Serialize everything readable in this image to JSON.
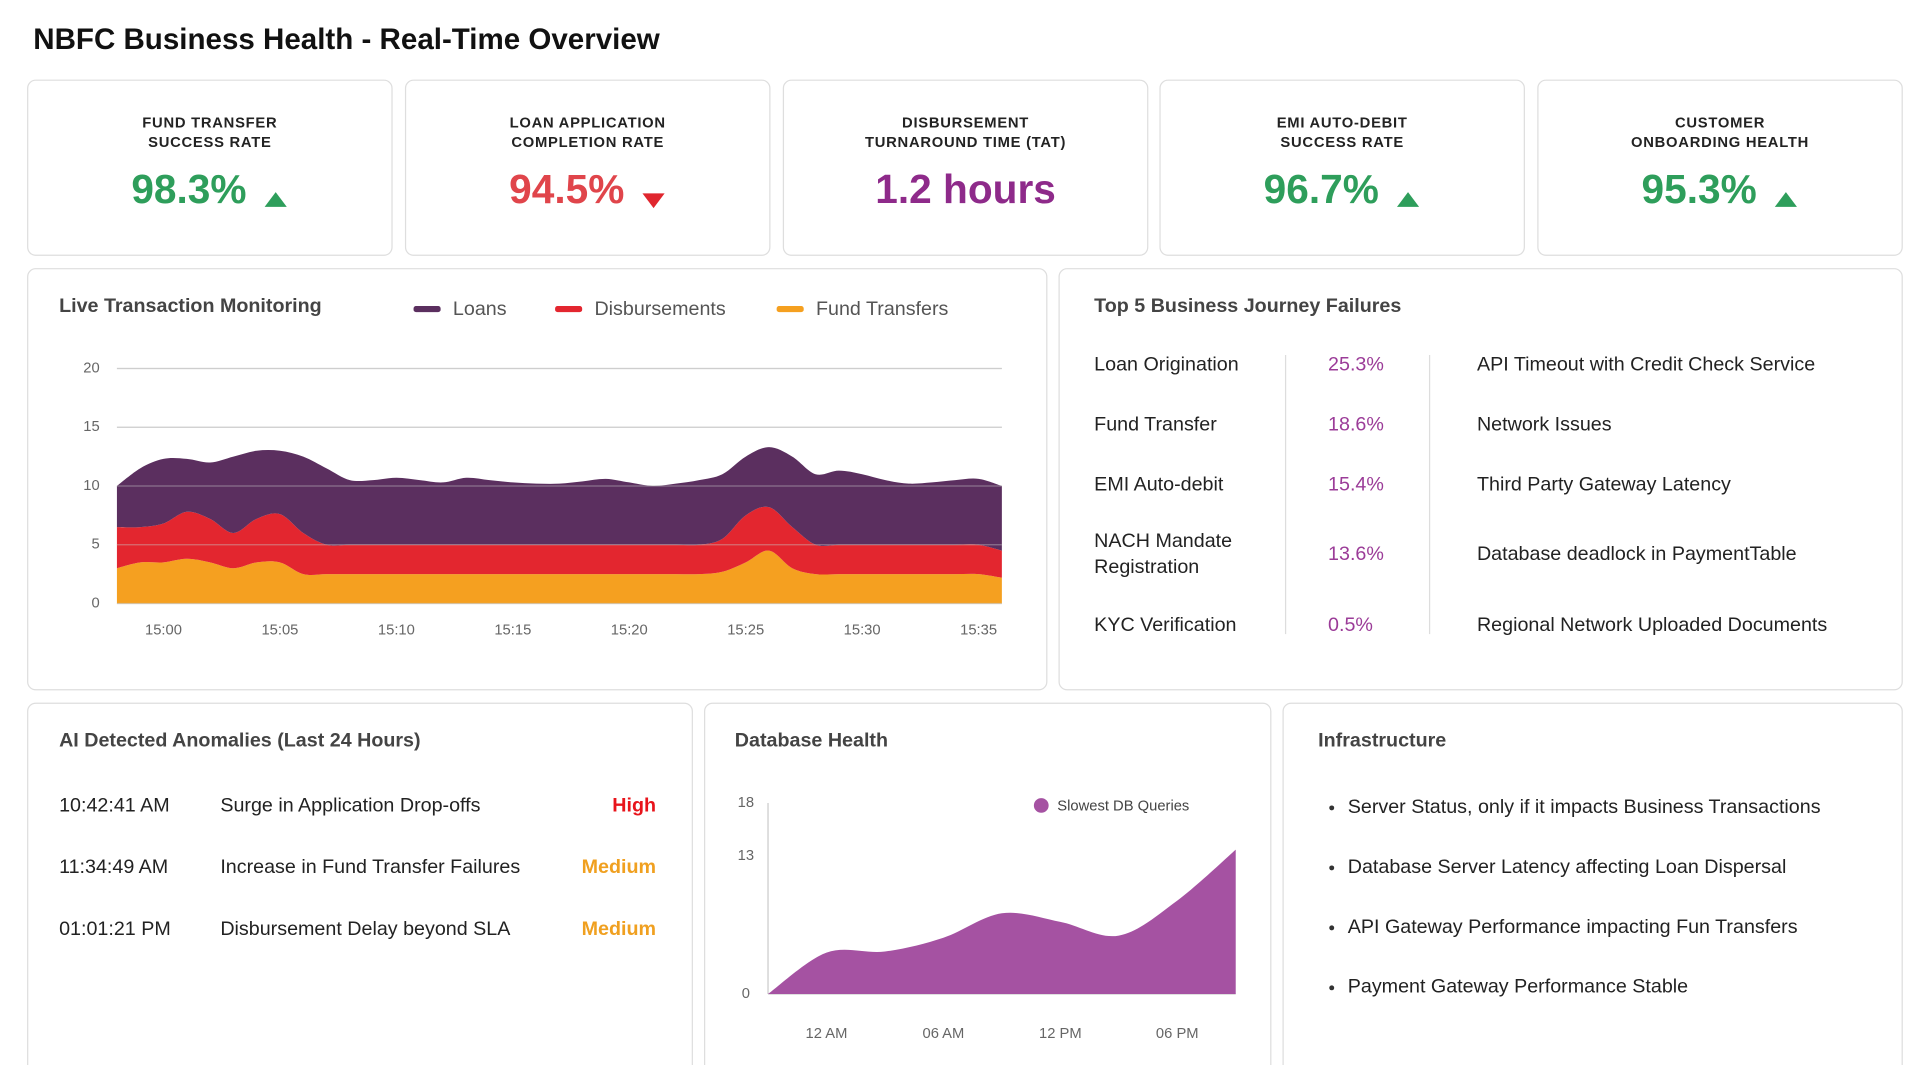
{
  "header": {
    "title": "NBFC Business Health - Real-Time Overview"
  },
  "kpis": [
    {
      "label_lines": [
        "FUND TRANSFER",
        "SUCCESS RATE"
      ],
      "value": "98.3%",
      "trend": "up",
      "color": "#2e9e5b"
    },
    {
      "label_lines": [
        "LOAN APPLICATION",
        "COMPLETION RATE"
      ],
      "value": "94.5%",
      "trend": "down",
      "color": "#e0454b"
    },
    {
      "label_lines": [
        "DISBURSEMENT",
        "TURNAROUND TIME (TAT)"
      ],
      "value": "1.2 hours",
      "color": "#8e2a8a"
    },
    {
      "label_lines": [
        "EMI AUTO-DEBIT",
        "SUCCESS RATE"
      ],
      "value": "96.7%",
      "trend": "up",
      "color": "#2e9e5b"
    },
    {
      "label_lines": [
        "CUSTOMER",
        "ONBOARDING HEALTH"
      ],
      "value": "95.3%",
      "trend": "up",
      "color": "#2e9e5b"
    }
  ],
  "chart_data": [
    {
      "type": "area",
      "stacked": true,
      "title": "Live Transaction Monitoring",
      "categories": [
        null,
        null,
        "15:00",
        null,
        null,
        null,
        null,
        "15:05",
        null,
        null,
        null,
        null,
        "15:10",
        null,
        null,
        null,
        null,
        "15:15",
        null,
        null,
        null,
        null,
        "15:20",
        null,
        null,
        null,
        null,
        "15:25",
        null,
        null,
        null,
        null,
        "15:30",
        null,
        null,
        null,
        null,
        "15:35",
        null
      ],
      "series": [
        {
          "name": "Loans",
          "color": "#5b2f5f",
          "values": [
            3.5,
            5,
            5.5,
            4.5,
            4.8,
            6.5,
            5.8,
            5.4,
            6.5,
            6.5,
            5.5,
            5.5,
            5.7,
            5.5,
            5.3,
            5.7,
            5.5,
            5.3,
            5.2,
            5.2,
            5.4,
            5.6,
            5.3,
            5,
            5.2,
            5.5,
            5.5,
            5,
            5.1,
            6,
            6,
            6.3,
            6,
            5.5,
            5.2,
            5.3,
            5.5,
            5.6,
            5.5
          ]
        },
        {
          "name": "Disbursements",
          "color": "#e3262f",
          "values": [
            3.5,
            3,
            3.3,
            4,
            3.7,
            3,
            3.7,
            4.1,
            3.5,
            2.5,
            2.5,
            2.5,
            2.5,
            2.5,
            2.5,
            2.5,
            2.5,
            2.5,
            2.5,
            2.5,
            2.5,
            2.5,
            2.5,
            2.5,
            2.5,
            2.5,
            2.8,
            4,
            3.7,
            3.5,
            2.5,
            2.5,
            2.5,
            2.5,
            2.5,
            2.5,
            2.5,
            2.5,
            2.3
          ]
        },
        {
          "name": "Fund Transfers",
          "color": "#f5a020",
          "values": [
            3,
            3.5,
            3.5,
            3.8,
            3.5,
            3,
            3.5,
            3.5,
            2.5,
            2.5,
            2.5,
            2.5,
            2.5,
            2.5,
            2.5,
            2.5,
            2.5,
            2.5,
            2.5,
            2.5,
            2.5,
            2.5,
            2.5,
            2.5,
            2.5,
            2.5,
            2.7,
            3.5,
            4.5,
            3,
            2.5,
            2.5,
            2.5,
            2.5,
            2.5,
            2.5,
            2.5,
            2.5,
            2.2
          ]
        }
      ],
      "ylim": [
        0,
        20
      ],
      "yticks": [
        0,
        5,
        10,
        15,
        20
      ],
      "grid": true
    },
    {
      "type": "area",
      "title": "Database Health",
      "categories": [
        null,
        "12 AM",
        null,
        "06 AM",
        null,
        "12 PM",
        null,
        "06 PM",
        null
      ],
      "series": [
        {
          "name": "Slowest DB Queries",
          "color": "#a552a2",
          "values": [
            0,
            3.9,
            4,
            5.3,
            7.6,
            6.8,
            5.5,
            8.8,
            13.6
          ]
        }
      ],
      "ylim": [
        0,
        18
      ],
      "yticks": [
        0,
        13,
        18
      ],
      "grid": false,
      "legend": "top-right"
    }
  ],
  "failures": {
    "title": "Top 5 Business Journey Failures",
    "rows": [
      [
        "Loan Origination",
        "25.3%",
        "API Timeout with Credit Check Service"
      ],
      [
        "Fund Transfer",
        "18.6%",
        "Network Issues"
      ],
      [
        "EMI Auto-debit",
        "15.4%",
        "Third Party Gateway Latency"
      ],
      [
        "NACH Mandate Registration",
        "13.6%",
        "Database deadlock in PaymentTable"
      ],
      [
        "KYC Verification",
        "0.5%",
        "Regional Network Uploaded Documents"
      ]
    ]
  },
  "anomalies": {
    "title": "AI Detected Anomalies (Last 24 Hours)",
    "rows": [
      {
        "time": "10:42:41 AM",
        "description": "Surge in Application Drop-offs",
        "severity": "High",
        "color": "#e8141b"
      },
      {
        "time": "11:34:49 AM",
        "description": "Increase in Fund Transfer Failures",
        "severity": "Medium",
        "color": "#f0a020"
      },
      {
        "time": "01:01:21 PM",
        "description": "Disbursement Delay beyond SLA",
        "severity": "Medium",
        "color": "#f0a020"
      }
    ]
  },
  "infrastructure": {
    "title": "Infrastructure",
    "items": [
      "Server Status, only if it impacts Business Transactions",
      "Database Server Latency affecting Loan Dispersal",
      "API Gateway Performance impacting Fun Transfers",
      "Payment Gateway Performance Stable"
    ]
  }
}
